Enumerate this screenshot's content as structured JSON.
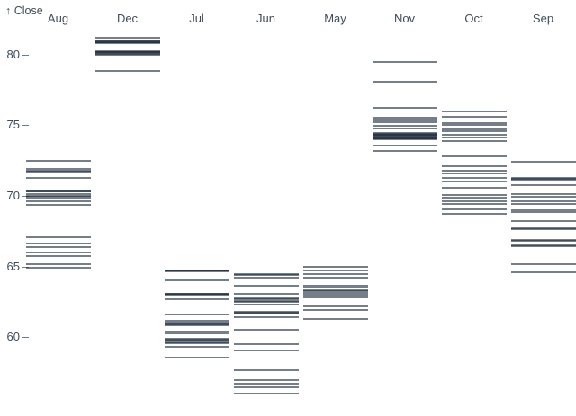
{
  "chart_data": {
    "type": "tick",
    "title": "",
    "ylabel": "Close",
    "y_axis_title_display": "↑ Close",
    "xlabel": "",
    "categories": [
      "Aug",
      "Dec",
      "Jul",
      "Jun",
      "May",
      "Nov",
      "Oct",
      "Sep"
    ],
    "y_ticks": [
      80,
      75,
      70,
      65,
      60
    ],
    "ylim": [
      55.8,
      81.5
    ],
    "grid": false,
    "legend": false,
    "tick_color": "#1A2A3A",
    "tick_opacity": 0.6,
    "label_color": "#3F4C5A",
    "series": [
      {
        "name": "Aug",
        "values": [
          72.5,
          71.9,
          71.8,
          71.75,
          71.3,
          70.35,
          70.3,
          70.15,
          70.0,
          69.95,
          69.8,
          69.6,
          69.4,
          67.05,
          66.65,
          66.35,
          66.0,
          65.75,
          65.2,
          64.9
        ]
      },
      {
        "name": "Dec",
        "values": [
          81.2,
          80.98,
          80.95,
          80.9,
          80.85,
          80.82,
          80.25,
          80.2,
          80.15,
          80.1,
          80.05,
          80.0,
          78.85
        ]
      },
      {
        "name": "Jul",
        "values": [
          64.75,
          64.7,
          64.65,
          64.0,
          63.1,
          63.05,
          63.0,
          62.7,
          61.6,
          61.15,
          61.05,
          61.0,
          60.9,
          60.85,
          60.4,
          60.3,
          59.9,
          59.85,
          59.75,
          59.65,
          59.6,
          59.3,
          58.55
        ]
      },
      {
        "name": "Jun",
        "values": [
          64.45,
          64.4,
          64.2,
          63.65,
          63.1,
          62.75,
          62.7,
          62.55,
          62.5,
          62.3,
          61.8,
          61.75,
          61.65,
          61.4,
          60.55,
          59.55,
          59.1,
          57.7,
          56.95,
          56.7,
          56.45,
          56.05
        ]
      },
      {
        "name": "May",
        "values": [
          65.0,
          64.7,
          64.5,
          64.2,
          63.65,
          63.5,
          63.35,
          63.25,
          63.15,
          63.0,
          62.9,
          62.8,
          62.2,
          61.95,
          61.3
        ]
      },
      {
        "name": "Nov",
        "values": [
          79.45,
          78.05,
          76.2,
          75.55,
          75.35,
          75.2,
          74.95,
          74.8,
          74.45,
          74.4,
          74.35,
          74.3,
          74.25,
          74.2,
          74.15,
          74.1,
          74.05,
          74.0,
          73.55,
          73.15
        ]
      },
      {
        "name": "Oct",
        "values": [
          76.0,
          75.6,
          75.15,
          75.05,
          74.7,
          74.55,
          74.3,
          74.15,
          73.85,
          72.8,
          72.1,
          71.8,
          71.6,
          71.3,
          71.0,
          70.6,
          70.05,
          69.9,
          69.6,
          69.45,
          69.05,
          68.75
        ]
      },
      {
        "name": "Sep",
        "values": [
          72.4,
          71.25,
          71.2,
          71.15,
          70.75,
          70.1,
          69.95,
          69.6,
          69.45,
          69.0,
          68.85,
          68.25,
          67.7,
          67.65,
          66.9,
          66.85,
          66.5,
          66.45,
          65.2,
          64.6
        ]
      }
    ]
  }
}
